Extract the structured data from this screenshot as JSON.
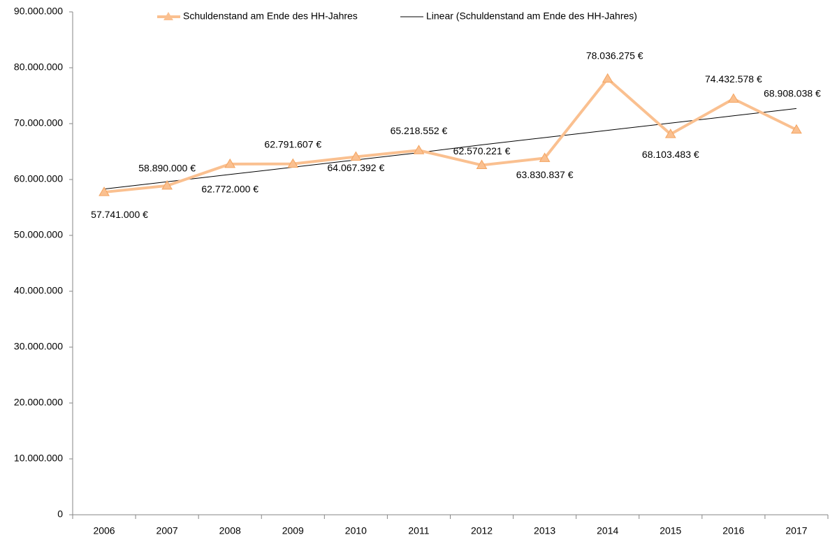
{
  "chart_data": {
    "type": "line",
    "categories": [
      "2006",
      "2007",
      "2008",
      "2009",
      "2010",
      "2011",
      "2012",
      "2013",
      "2014",
      "2015",
      "2016",
      "2017"
    ],
    "series": [
      {
        "name": "Schuldenstand am Ende des HH-Jahres",
        "color": "#fac090",
        "values": [
          57741000,
          58890000,
          62772000,
          62791607,
          64067392,
          65218552,
          62570221,
          63830837,
          78036275,
          68103483,
          74432578,
          68908038
        ],
        "value_labels": [
          "57.741.000 €",
          "58.890.000 €",
          "62.772.000 €",
          "62.791.607 €",
          "64.067.392 €",
          "65.218.552 €",
          "62.570.221 €",
          "63.830.837 €",
          "78.036.275 €",
          "68.103.483 €",
          "74.432.578 €",
          "68.908.038 €"
        ]
      },
      {
        "name": "Linear (Schuldenstand am Ende des HH-Jahres)",
        "color": "#000000",
        "values": [
          58300000,
          59600000,
          60900000,
          62200000,
          63500000,
          64800000,
          66200000,
          67500000,
          68800000,
          70100000,
          71400000,
          72700000
        ]
      }
    ],
    "ylim": [
      0,
      90000000
    ],
    "yticks": [
      0,
      {
        "value": 10000000,
        "label": "10.000.000"
      },
      {
        "value": 20000000,
        "label": "20.000.000"
      },
      {
        "value": 30000000,
        "label": "30.000.000"
      },
      {
        "value": 40000000,
        "label": "40.000.000"
      },
      {
        "value": 50000000,
        "label": "50.000.000"
      },
      {
        "value": 60000000,
        "label": "60.000.000"
      },
      {
        "value": 70000000,
        "label": "70.000.000"
      },
      {
        "value": 80000000,
        "label": "80.000.000"
      },
      {
        "value": 90000000,
        "label": "90.000.000"
      }
    ],
    "legend": "top"
  }
}
